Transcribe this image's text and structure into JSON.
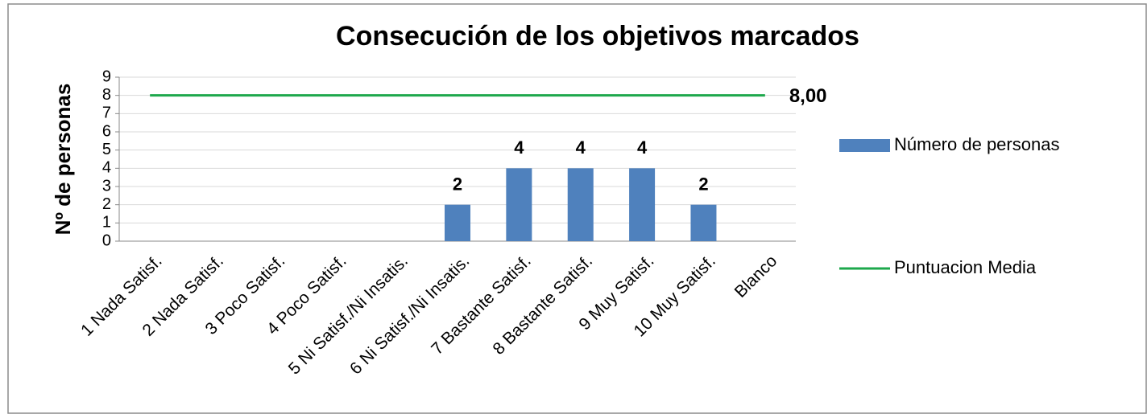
{
  "chart_data": {
    "type": "bar-line",
    "title": "Consecución de los objetivos marcados",
    "y_label": "Nº de personas",
    "categories": [
      "1 Nada Satisf.",
      "2 Nada Satisf.",
      "3 Poco Satisf.",
      "4 Poco Satisf.",
      "5 Ni Satisf./Ni Insatis.",
      "6 Ni Satisf./Ni Insatis.",
      "7 Bastante Satisf.",
      "8 Bastante Satisf.",
      "9 Muy Satisf.",
      "10 Muy Satisf.",
      "Blanco"
    ],
    "series": [
      {
        "name": "Número de personas",
        "type": "bar",
        "color": "#4f81bd",
        "values": [
          0,
          0,
          0,
          0,
          0,
          2,
          4,
          4,
          4,
          2,
          0
        ]
      },
      {
        "name": "Puntuacion Media",
        "type": "line",
        "color": "#1ea84c",
        "values": [
          8,
          8,
          8,
          8,
          8,
          8,
          8,
          8,
          8,
          8,
          8
        ],
        "value_labels": [
          null,
          null,
          null,
          null,
          null,
          null,
          null,
          null,
          null,
          null,
          "8,00"
        ]
      }
    ],
    "ylim": [
      0,
      9
    ],
    "yticks": [
      0,
      1,
      2,
      3,
      4,
      5,
      6,
      7,
      8,
      9
    ],
    "grid": true
  }
}
